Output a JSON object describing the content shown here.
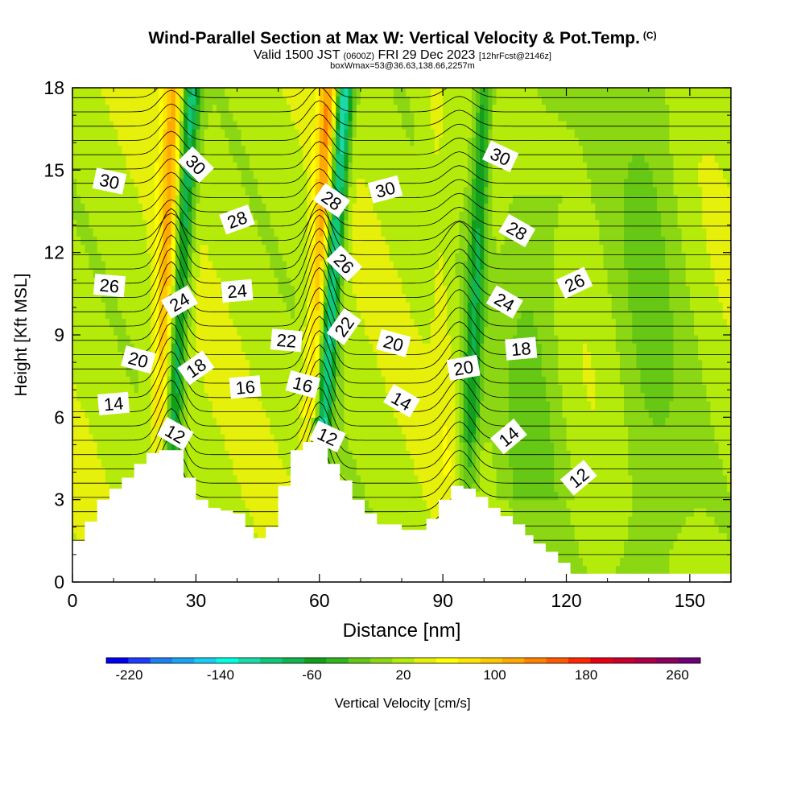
{
  "title": {
    "main": "Wind-Parallel Section at Max W: Vertical Velocity & Pot.Temp.",
    "copyright": "(C)",
    "valid_prefix": "Valid 1500 JST",
    "valid_zulu": "(0600Z)",
    "valid_date": "FRI 29 Dec 2023",
    "forecast": "[12hrFcst@2146z]",
    "box_info": "boxWmax=53@36.63,138.66,2257m"
  },
  "chart_data": {
    "type": "heatmap",
    "xlabel": "Distance [nm]",
    "ylabel": "Height [Kft MSL]",
    "xlim": [
      0,
      160
    ],
    "ylim": [
      0,
      18
    ],
    "x_ticks": [
      0,
      30,
      60,
      90,
      120,
      150
    ],
    "y_ticks": [
      0,
      3,
      6,
      9,
      12,
      15,
      18
    ],
    "colorbar": {
      "label": "Vertical Velocity [cm/s]",
      "tick_labels": [
        -220,
        -140,
        -60,
        20,
        100,
        180,
        260
      ],
      "range": [
        -240,
        280
      ],
      "colors": [
        "#0000f0",
        "#1e3cff",
        "#1f7ef0",
        "#18a5f0",
        "#18cdf0",
        "#00ffe0",
        "#1bd9a8",
        "#10c878",
        "#10b450",
        "#12a01c",
        "#33b41e",
        "#66c814",
        "#8cd714",
        "#b4eb0a",
        "#e6f00a",
        "#ffff00",
        "#ffe600",
        "#ffc800",
        "#ffaa00",
        "#ff8200",
        "#ff5a00",
        "#ff2800",
        "#e60014",
        "#c8002d",
        "#aa0046",
        "#8c005f",
        "#6e0078"
      ]
    },
    "terrain_kft": [
      [
        0,
        1.5
      ],
      [
        3,
        2.2
      ],
      [
        6,
        3
      ],
      [
        9,
        3.4
      ],
      [
        12,
        3.8
      ],
      [
        15,
        4.3
      ],
      [
        18,
        4.7
      ],
      [
        21,
        4.8
      ],
      [
        25,
        4.8
      ],
      [
        27,
        3.8
      ],
      [
        30,
        3
      ],
      [
        33,
        2.7
      ],
      [
        36,
        2.6
      ],
      [
        39,
        2.5
      ],
      [
        42,
        2
      ],
      [
        44,
        1.6
      ],
      [
        47,
        2
      ],
      [
        50,
        3.5
      ],
      [
        53,
        4.8
      ],
      [
        56,
        5.1
      ],
      [
        60,
        5
      ],
      [
        62,
        4.3
      ],
      [
        65,
        3.7
      ],
      [
        68,
        3
      ],
      [
        71,
        2.5
      ],
      [
        74,
        2.1
      ],
      [
        77,
        2.1
      ],
      [
        80,
        1.9
      ],
      [
        86,
        2.3
      ],
      [
        89,
        3
      ],
      [
        92,
        3.5
      ],
      [
        95,
        3.4
      ],
      [
        98,
        3.1
      ],
      [
        101,
        2.7
      ],
      [
        104,
        2.4
      ],
      [
        107,
        2.1
      ],
      [
        110,
        1.7
      ],
      [
        112,
        1.4
      ],
      [
        115,
        1.1
      ],
      [
        118,
        0.7
      ],
      [
        121,
        0.3
      ],
      [
        160,
        0.3
      ]
    ],
    "updraft_bands": [
      {
        "x_kft0": 20.5,
        "x_kft18": 24.5,
        "peak_cm_s": 110
      },
      {
        "x_kft0": 57,
        "x_kft18": 62.5,
        "peak_cm_s": 130
      },
      {
        "x_kft0": 92,
        "x_kft18": 88,
        "peak_cm_s": 40
      }
    ],
    "downdraft_bands": [
      {
        "x_kft0": 22,
        "x_kft18": 29,
        "peak_cm_s": -90
      },
      {
        "x_kft0": 58,
        "x_kft18": 66,
        "peak_cm_s": -140
      },
      {
        "x_kft0": 95,
        "x_kft18": 100,
        "peak_cm_s": -60
      }
    ],
    "theta_labels": [
      {
        "text": "30",
        "x": 9,
        "y": 14.6,
        "angle": 12
      },
      {
        "text": "30",
        "x": 30,
        "y": 15.2,
        "angle": 45
      },
      {
        "text": "28",
        "x": 40,
        "y": 13.2,
        "angle": -20
      },
      {
        "text": "28",
        "x": 63,
        "y": 13.9,
        "angle": 35
      },
      {
        "text": "30",
        "x": 76,
        "y": 14.3,
        "angle": -15
      },
      {
        "text": "30",
        "x": 104,
        "y": 15.5,
        "angle": 25
      },
      {
        "text": "28",
        "x": 108,
        "y": 12.8,
        "angle": 30
      },
      {
        "text": "26",
        "x": 9,
        "y": 10.8,
        "angle": 5
      },
      {
        "text": "24",
        "x": 26,
        "y": 10.2,
        "angle": -30
      },
      {
        "text": "24",
        "x": 40,
        "y": 10.6,
        "angle": -5
      },
      {
        "text": "26",
        "x": 66,
        "y": 11.6,
        "angle": 45
      },
      {
        "text": "24",
        "x": 105,
        "y": 10.2,
        "angle": 30
      },
      {
        "text": "26",
        "x": 122,
        "y": 10.9,
        "angle": -25
      },
      {
        "text": "22",
        "x": 52,
        "y": 8.8,
        "angle": 5
      },
      {
        "text": "22",
        "x": 66,
        "y": 9.3,
        "angle": -55
      },
      {
        "text": "20",
        "x": 16,
        "y": 8.1,
        "angle": 15
      },
      {
        "text": "20",
        "x": 78,
        "y": 8.7,
        "angle": 15
      },
      {
        "text": "20",
        "x": 95,
        "y": 7.8,
        "angle": -10
      },
      {
        "text": "18",
        "x": 30,
        "y": 7.8,
        "angle": -35
      },
      {
        "text": "18",
        "x": 109,
        "y": 8.5,
        "angle": -5
      },
      {
        "text": "16",
        "x": 42,
        "y": 7.1,
        "angle": -5
      },
      {
        "text": "16",
        "x": 56,
        "y": 7.2,
        "angle": 15
      },
      {
        "text": "14",
        "x": 10,
        "y": 6.5,
        "angle": -5
      },
      {
        "text": "14",
        "x": 80,
        "y": 6.6,
        "angle": 30
      },
      {
        "text": "14",
        "x": 106,
        "y": 5.3,
        "angle": -40
      },
      {
        "text": "12",
        "x": 25,
        "y": 5.4,
        "angle": 30
      },
      {
        "text": "12",
        "x": 62,
        "y": 5.3,
        "angle": 25
      },
      {
        "text": "12",
        "x": 123,
        "y": 3.8,
        "angle": -40
      }
    ]
  }
}
